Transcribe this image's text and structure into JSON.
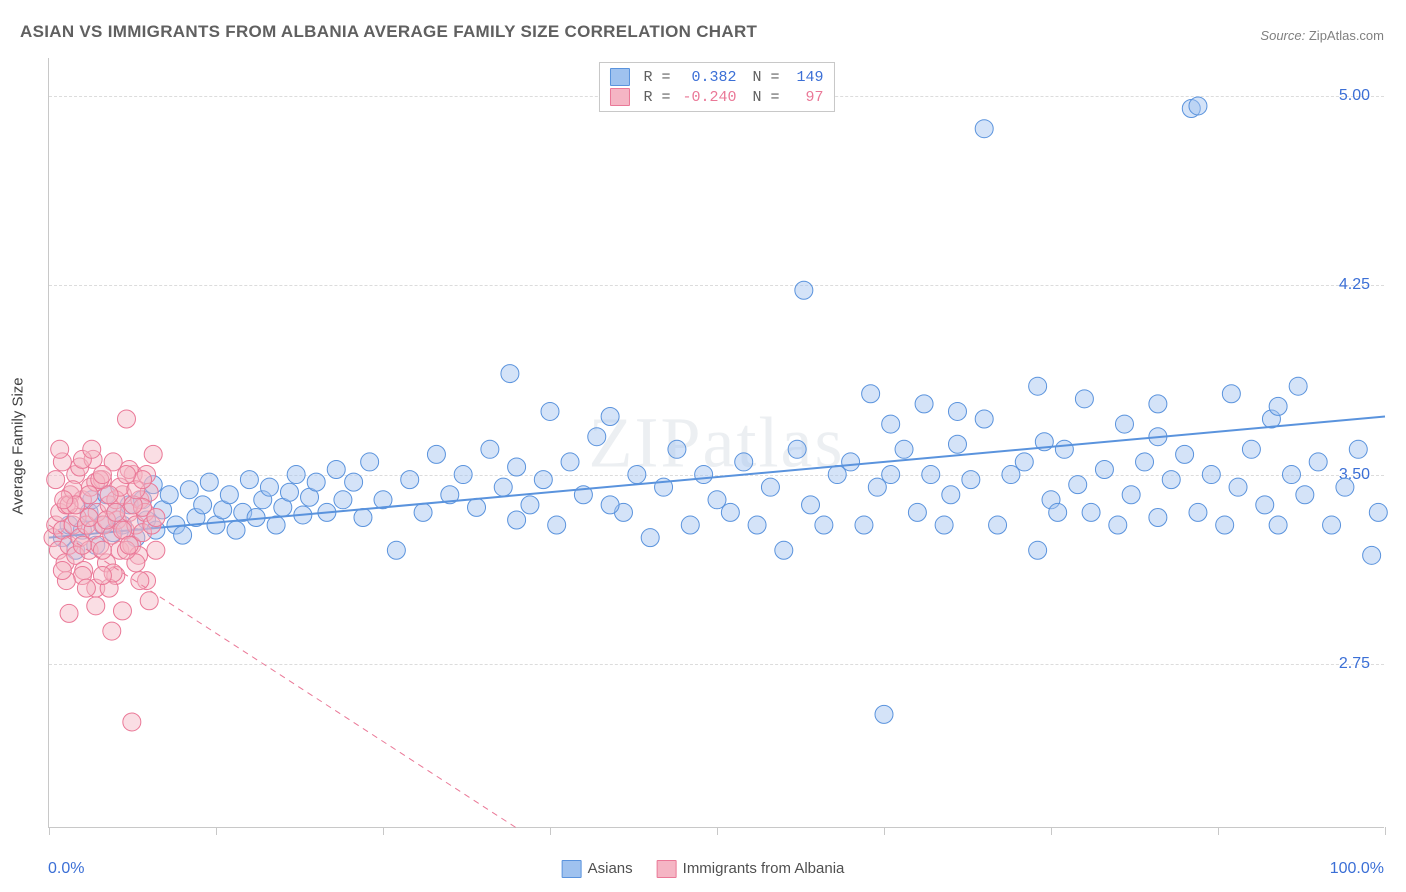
{
  "title": "ASIAN VS IMMIGRANTS FROM ALBANIA AVERAGE FAMILY SIZE CORRELATION CHART",
  "source_label": "Source:",
  "source_value": "ZipAtlas.com",
  "watermark": "ZIPatlas",
  "ylabel": "Average Family Size",
  "chart": {
    "type": "scatter",
    "xlim": [
      0,
      100
    ],
    "ylim": [
      2.1,
      5.15
    ],
    "x_min_label": "0.0%",
    "x_max_label": "100.0%",
    "ytick_values": [
      2.75,
      3.5,
      4.25,
      5.0
    ],
    "ytick_labels": [
      "2.75",
      "3.50",
      "4.25",
      "5.00"
    ],
    "xtick_positions": [
      0,
      12.5,
      25,
      37.5,
      50,
      62.5,
      75,
      87.5,
      100
    ],
    "background_color": "#ffffff",
    "grid_color": "#dcdcdc",
    "marker_radius": 9,
    "marker_opacity": 0.45,
    "series": [
      {
        "name": "Asians",
        "color_fill": "#9fc2ef",
        "color_stroke": "#5a93dd",
        "regression": {
          "x1": 0,
          "y1": 3.25,
          "x2": 100,
          "y2": 3.73,
          "width": 2,
          "dash": "none"
        },
        "R": 0.382,
        "N": 149,
        "stat_color": "#3b6fd6",
        "points": [
          [
            1,
            3.25
          ],
          [
            1.5,
            3.3
          ],
          [
            2,
            3.2
          ],
          [
            2.5,
            3.28
          ],
          [
            3,
            3.35
          ],
          [
            3.2,
            3.4
          ],
          [
            3.5,
            3.22
          ],
          [
            4,
            3.3
          ],
          [
            4.3,
            3.42
          ],
          [
            4.8,
            3.27
          ],
          [
            5,
            3.35
          ],
          [
            5.5,
            3.3
          ],
          [
            6,
            3.38
          ],
          [
            6.5,
            3.25
          ],
          [
            7,
            3.4
          ],
          [
            7.3,
            3.32
          ],
          [
            7.8,
            3.46
          ],
          [
            8,
            3.28
          ],
          [
            8.5,
            3.36
          ],
          [
            9,
            3.42
          ],
          [
            9.5,
            3.3
          ],
          [
            10,
            3.26
          ],
          [
            10.5,
            3.44
          ],
          [
            11,
            3.33
          ],
          [
            11.5,
            3.38
          ],
          [
            12,
            3.47
          ],
          [
            12.5,
            3.3
          ],
          [
            13,
            3.36
          ],
          [
            13.5,
            3.42
          ],
          [
            14,
            3.28
          ],
          [
            14.5,
            3.35
          ],
          [
            15,
            3.48
          ],
          [
            15.5,
            3.33
          ],
          [
            16,
            3.4
          ],
          [
            16.5,
            3.45
          ],
          [
            17,
            3.3
          ],
          [
            17.5,
            3.37
          ],
          [
            18,
            3.43
          ],
          [
            18.5,
            3.5
          ],
          [
            19,
            3.34
          ],
          [
            19.5,
            3.41
          ],
          [
            20,
            3.47
          ],
          [
            20.8,
            3.35
          ],
          [
            21.5,
            3.52
          ],
          [
            22,
            3.4
          ],
          [
            22.8,
            3.47
          ],
          [
            23.5,
            3.33
          ],
          [
            24,
            3.55
          ],
          [
            25,
            3.4
          ],
          [
            26,
            3.2
          ],
          [
            27,
            3.48
          ],
          [
            28,
            3.35
          ],
          [
            29,
            3.58
          ],
          [
            30,
            3.42
          ],
          [
            31,
            3.5
          ],
          [
            32,
            3.37
          ],
          [
            33,
            3.6
          ],
          [
            34,
            3.45
          ],
          [
            34.5,
            3.9
          ],
          [
            35,
            3.53
          ],
          [
            36,
            3.38
          ],
          [
            37,
            3.48
          ],
          [
            37.5,
            3.75
          ],
          [
            38,
            3.3
          ],
          [
            39,
            3.55
          ],
          [
            40,
            3.42
          ],
          [
            41,
            3.65
          ],
          [
            42,
            3.73
          ],
          [
            43,
            3.35
          ],
          [
            44,
            3.5
          ],
          [
            45,
            3.25
          ],
          [
            46,
            3.45
          ],
          [
            47,
            3.6
          ],
          [
            48,
            3.3
          ],
          [
            49,
            3.5
          ],
          [
            50,
            3.4
          ],
          [
            51,
            3.35
          ],
          [
            52,
            3.55
          ],
          [
            53,
            3.3
          ],
          [
            54,
            3.45
          ],
          [
            55,
            3.2
          ],
          [
            56,
            3.6
          ],
          [
            56.5,
            4.23
          ],
          [
            57,
            3.38
          ],
          [
            58,
            3.3
          ],
          [
            59,
            3.5
          ],
          [
            60,
            3.55
          ],
          [
            61,
            3.3
          ],
          [
            61.5,
            3.82
          ],
          [
            62,
            3.45
          ],
          [
            62.5,
            2.55
          ],
          [
            63,
            3.5
          ],
          [
            64,
            3.6
          ],
          [
            65,
            3.35
          ],
          [
            65.5,
            3.78
          ],
          [
            66,
            3.5
          ],
          [
            67,
            3.3
          ],
          [
            67.5,
            3.42
          ],
          [
            68,
            3.62
          ],
          [
            69,
            3.48
          ],
          [
            70,
            3.72
          ],
          [
            70,
            4.87
          ],
          [
            71,
            3.3
          ],
          [
            72,
            3.5
          ],
          [
            73,
            3.55
          ],
          [
            74,
            3.2
          ],
          [
            74.5,
            3.63
          ],
          [
            75,
            3.4
          ],
          [
            75.5,
            3.35
          ],
          [
            76,
            3.6
          ],
          [
            77,
            3.46
          ],
          [
            77.5,
            3.8
          ],
          [
            78,
            3.35
          ],
          [
            79,
            3.52
          ],
          [
            80,
            3.3
          ],
          [
            80.5,
            3.7
          ],
          [
            81,
            3.42
          ],
          [
            82,
            3.55
          ],
          [
            83,
            3.65
          ],
          [
            83,
            3.33
          ],
          [
            84,
            3.48
          ],
          [
            85,
            3.58
          ],
          [
            85.5,
            4.95
          ],
          [
            86,
            4.96
          ],
          [
            86,
            3.35
          ],
          [
            87,
            3.5
          ],
          [
            88,
            3.3
          ],
          [
            88.5,
            3.82
          ],
          [
            89,
            3.45
          ],
          [
            90,
            3.6
          ],
          [
            91,
            3.38
          ],
          [
            91.5,
            3.72
          ],
          [
            92,
            3.3
          ],
          [
            93,
            3.5
          ],
          [
            93.5,
            3.85
          ],
          [
            94,
            3.42
          ],
          [
            95,
            3.55
          ],
          [
            96,
            3.3
          ],
          [
            97,
            3.45
          ],
          [
            98,
            3.6
          ],
          [
            99,
            3.18
          ],
          [
            99.5,
            3.35
          ],
          [
            92,
            3.77
          ],
          [
            63,
            3.7
          ],
          [
            74,
            3.85
          ],
          [
            83,
            3.78
          ],
          [
            68,
            3.75
          ],
          [
            35,
            3.32
          ],
          [
            42,
            3.38
          ]
        ]
      },
      {
        "name": "Immigrants from Albania",
        "color_fill": "#f5b5c4",
        "color_stroke": "#ea7897",
        "regression": {
          "x1": 0,
          "y1": 3.3,
          "x2": 35,
          "y2": 2.1,
          "width": 1,
          "dash": "6,5"
        },
        "R": -0.24,
        "N": 97,
        "stat_color": "#ea7897",
        "points": [
          [
            0.3,
            3.25
          ],
          [
            0.5,
            3.3
          ],
          [
            0.7,
            3.2
          ],
          [
            0.8,
            3.35
          ],
          [
            1,
            3.28
          ],
          [
            1.2,
            3.15
          ],
          [
            1.3,
            3.38
          ],
          [
            1.5,
            3.22
          ],
          [
            1.6,
            3.42
          ],
          [
            1.8,
            3.3
          ],
          [
            2,
            3.18
          ],
          [
            2.1,
            3.33
          ],
          [
            2.3,
            3.25
          ],
          [
            2.5,
            3.4
          ],
          [
            2.6,
            3.12
          ],
          [
            2.8,
            3.3
          ],
          [
            3,
            3.2
          ],
          [
            3.1,
            3.45
          ],
          [
            3.3,
            3.28
          ],
          [
            3.5,
            3.05
          ],
          [
            3.6,
            3.35
          ],
          [
            3.8,
            3.22
          ],
          [
            4,
            3.48
          ],
          [
            4.1,
            3.3
          ],
          [
            4.3,
            3.15
          ],
          [
            4.5,
            3.38
          ],
          [
            4.7,
            3.26
          ],
          [
            4.8,
            3.55
          ],
          [
            5,
            3.1
          ],
          [
            5.1,
            3.32
          ],
          [
            5.3,
            3.2
          ],
          [
            5.5,
            3.42
          ],
          [
            5.7,
            3.28
          ],
          [
            5.8,
            3.72
          ],
          [
            6,
            3.35
          ],
          [
            6.2,
            3.22
          ],
          [
            6.3,
            3.5
          ],
          [
            6.5,
            3.3
          ],
          [
            6.7,
            3.18
          ],
          [
            6.8,
            3.4
          ],
          [
            7,
            3.27
          ],
          [
            7.2,
            3.35
          ],
          [
            7.3,
            3.08
          ],
          [
            7.5,
            3.43
          ],
          [
            7.7,
            3.3
          ],
          [
            7.8,
            3.58
          ],
          [
            8,
            3.2
          ],
          [
            0.5,
            3.48
          ],
          [
            1,
            3.55
          ],
          [
            1.5,
            3.38
          ],
          [
            2,
            3.5
          ],
          [
            2.5,
            3.1
          ],
          [
            3,
            3.33
          ],
          [
            3.5,
            3.47
          ],
          [
            4,
            3.2
          ],
          [
            4.5,
            3.05
          ],
          [
            5,
            3.4
          ],
          [
            5.5,
            3.28
          ],
          [
            6,
            3.52
          ],
          [
            6.5,
            3.15
          ],
          [
            7,
            3.37
          ],
          [
            7.5,
            3.0
          ],
          [
            8,
            3.33
          ],
          [
            0.8,
            3.6
          ],
          [
            1.3,
            3.08
          ],
          [
            1.8,
            3.44
          ],
          [
            2.3,
            3.53
          ],
          [
            2.8,
            3.05
          ],
          [
            3.3,
            3.56
          ],
          [
            3.8,
            3.48
          ],
          [
            4.3,
            3.32
          ],
          [
            4.8,
            3.11
          ],
          [
            5.3,
            3.45
          ],
          [
            5.8,
            3.2
          ],
          [
            6.3,
            3.38
          ],
          [
            6.8,
            3.08
          ],
          [
            7.3,
            3.5
          ],
          [
            1.5,
            2.95
          ],
          [
            2.5,
            3.56
          ],
          [
            3.5,
            2.98
          ],
          [
            4.5,
            3.42
          ],
          [
            5.5,
            2.96
          ],
          [
            6.5,
            3.44
          ],
          [
            4,
            3.1
          ],
          [
            5,
            3.35
          ],
          [
            6,
            3.22
          ],
          [
            7,
            3.48
          ],
          [
            2,
            3.38
          ],
          [
            3,
            3.42
          ],
          [
            4,
            3.5
          ],
          [
            1,
            3.12
          ],
          [
            2.5,
            3.22
          ],
          [
            6.2,
            2.52
          ],
          [
            4.7,
            2.88
          ],
          [
            3.2,
            3.6
          ],
          [
            5.8,
            3.5
          ],
          [
            1.1,
            3.4
          ]
        ]
      }
    ]
  },
  "bottom_legend": [
    {
      "label": "Asians",
      "fill": "#9fc2ef",
      "stroke": "#5a93dd"
    },
    {
      "label": "Immigrants from Albania",
      "fill": "#f5b5c4",
      "stroke": "#ea7897"
    }
  ]
}
